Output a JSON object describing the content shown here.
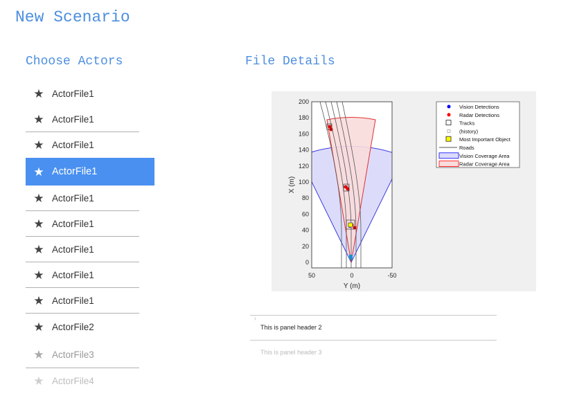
{
  "page": {
    "title": "New Scenario"
  },
  "actors": {
    "title": "Choose Actors",
    "items": [
      {
        "label": "ActorFile1",
        "state": "normal"
      },
      {
        "label": "ActorFile1",
        "state": "normal"
      },
      {
        "label": "ActorFile1",
        "state": "normal"
      },
      {
        "label": "ActorFile1",
        "state": "selected"
      },
      {
        "label": "ActorFile1",
        "state": "normal"
      },
      {
        "label": "ActorFile1",
        "state": "normal"
      },
      {
        "label": "ActorFile1",
        "state": "normal"
      },
      {
        "label": "ActorFile1",
        "state": "normal"
      },
      {
        "label": "ActorFile1",
        "state": "normal"
      },
      {
        "label": "ActorFile2",
        "state": "normal"
      },
      {
        "label": "ActorFile3",
        "state": "faded"
      },
      {
        "label": "ActorFile4",
        "state": "faded2"
      }
    ]
  },
  "details": {
    "title": "File Details",
    "plot": {
      "xlabel": "Y (m)",
      "ylabel": "X (m)",
      "x_ticks": [
        "50",
        "0",
        "-50"
      ],
      "y_ticks": [
        "0",
        "20",
        "40",
        "60",
        "80",
        "100",
        "120",
        "140",
        "160",
        "180",
        "200"
      ],
      "legend": [
        "Vision Detections",
        "Radar Detections",
        "Tracks",
        "(history)",
        "Most Important Object",
        "Roads",
        "Vision Coverage Area",
        "Radar Coverage Area"
      ],
      "colors": {
        "vision": "#0000ff",
        "radar": "#ff0000",
        "vision_area": "#dcdcfa",
        "radar_area": "#fadcdc",
        "mio": "#ffff00"
      }
    },
    "panels": [
      {
        "header": "This is panel header 2"
      },
      {
        "header": "This is panel header 3"
      }
    ]
  }
}
